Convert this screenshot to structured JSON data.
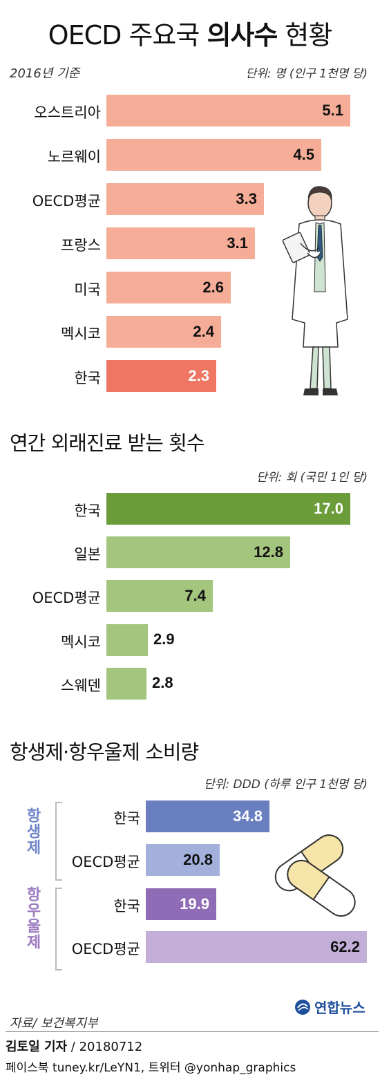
{
  "title": {
    "prefix": "OECD 주요국 ",
    "bold": "의사수",
    "suffix": " 현황"
  },
  "chart_data": [
    {
      "type": "bar",
      "orientation": "horizontal",
      "title": "OECD 주요국 의사수 현황",
      "subtitle": "2016년 기준",
      "unit": "단위: 명 (인구 1천명 당)",
      "categories": [
        "오스트리아",
        "노르웨이",
        "OECD평균",
        "프랑스",
        "미국",
        "멕시코",
        "한국"
      ],
      "values": [
        5.1,
        4.5,
        3.3,
        3.1,
        2.6,
        2.4,
        2.3
      ],
      "value_labels": [
        "5.1",
        "4.5",
        "3.3",
        "3.1",
        "2.6",
        "2.4",
        "2.3"
      ],
      "colors": [
        "#f6ad98",
        "#f6ad98",
        "#f6ad98",
        "#f6ad98",
        "#f6ad98",
        "#f6ad98",
        "#ee7663"
      ],
      "xlim": [
        0,
        5.1
      ]
    },
    {
      "type": "bar",
      "orientation": "horizontal",
      "title": "연간 외래진료 받는 횟수",
      "unit": "단위: 회 (국민 1인 당)",
      "categories": [
        "한국",
        "일본",
        "OECD평균",
        "멕시코",
        "스웨덴"
      ],
      "values": [
        17.0,
        12.8,
        7.4,
        2.9,
        2.8
      ],
      "value_labels": [
        "17.0",
        "12.8",
        "7.4",
        "2.9",
        "2.8"
      ],
      "colors": [
        "#6b9c39",
        "#a3c57d",
        "#a3c57d",
        "#a3c57d",
        "#a3c57d"
      ],
      "xlim": [
        0,
        17.0
      ]
    },
    {
      "type": "bar",
      "orientation": "horizontal",
      "title": "항생제·항우울제 소비량",
      "unit": "단위: DDD (하루 인구 1천명 당)",
      "groups": [
        {
          "name": "항생제",
          "color": "#6f85c8",
          "categories": [
            "한국",
            "OECD평균"
          ],
          "values": [
            34.8,
            20.8
          ],
          "value_labels": [
            "34.8",
            "20.8"
          ],
          "colors": [
            "#6a7fc0",
            "#a3b0dc"
          ]
        },
        {
          "name": "항우울제",
          "color": "#9b7ac0",
          "categories": [
            "한국",
            "OECD평균"
          ],
          "values": [
            19.9,
            62.2
          ],
          "value_labels": [
            "19.9",
            "62.2"
          ],
          "colors": [
            "#8f6cb5",
            "#c3aed8"
          ]
        }
      ],
      "xlim": [
        0,
        62.2
      ]
    }
  ],
  "source": "자료/ 보건복지부",
  "logo": "연합뉴스",
  "reporter": {
    "name": "김토일 기자",
    "date": " / 20180712"
  },
  "social": "페이스북 tuney.kr/LeYN1, 트위터 @yonhap_graphics"
}
